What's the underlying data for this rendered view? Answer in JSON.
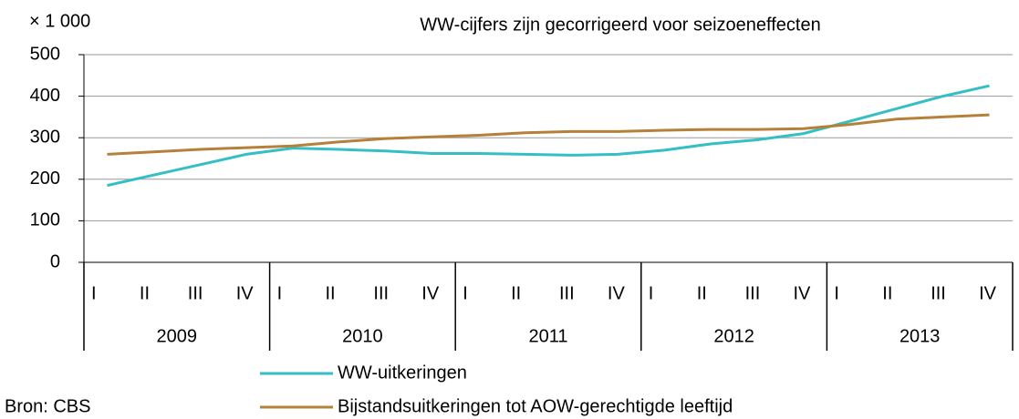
{
  "chart_data": {
    "type": "line",
    "title": "WW-cijfers zijn gecorrigeerd voor seizoeneffecten",
    "unit_label": "× 1 000",
    "source": "Bron: CBS",
    "categories": [
      "I",
      "II",
      "III",
      "IV",
      "I",
      "II",
      "III",
      "IV",
      "I",
      "II",
      "III",
      "IV",
      "I",
      "II",
      "III",
      "IV",
      "I",
      "II",
      "III",
      "IV"
    ],
    "years": [
      "2009",
      "2010",
      "2011",
      "2012",
      "2013"
    ],
    "series": [
      {
        "name": "WW-uitkeringen",
        "color": "#33bfc4",
        "values": [
          185,
          210,
          235,
          260,
          275,
          272,
          268,
          262,
          262,
          260,
          258,
          260,
          270,
          285,
          295,
          310,
          340,
          370,
          400,
          425
        ]
      },
      {
        "name": "Bijstandsuitkeringen tot AOW-gerechtigde leeftijd",
        "color": "#b5803a",
        "values": [
          260,
          266,
          272,
          276,
          280,
          290,
          298,
          302,
          306,
          312,
          315,
          315,
          318,
          320,
          320,
          322,
          332,
          345,
          350,
          355
        ]
      }
    ],
    "ylim": [
      0,
      500
    ],
    "yticks": [
      0,
      100,
      200,
      300,
      400,
      500
    ],
    "grid": true
  }
}
